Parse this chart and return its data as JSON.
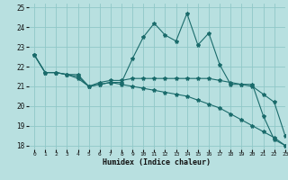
{
  "xlabel": "Humidex (Indice chaleur)",
  "background_color": "#b8e0e0",
  "grid_color": "#90c8c8",
  "line_color": "#1a6b6b",
  "xlim": [
    -0.5,
    23
  ],
  "ylim": [
    17.8,
    25.2
  ],
  "yticks": [
    18,
    19,
    20,
    21,
    22,
    23,
    24,
    25
  ],
  "xticks": [
    0,
    1,
    2,
    3,
    4,
    5,
    6,
    7,
    8,
    9,
    10,
    11,
    12,
    13,
    14,
    15,
    16,
    17,
    18,
    19,
    20,
    21,
    22,
    23
  ],
  "series": [
    [
      22.6,
      21.7,
      21.7,
      21.6,
      21.6,
      21.0,
      21.1,
      21.2,
      21.2,
      22.4,
      23.5,
      24.2,
      23.6,
      23.3,
      24.7,
      23.1,
      23.7,
      22.1,
      21.1,
      21.1,
      21.1,
      19.5,
      18.3,
      18.0
    ],
    [
      22.6,
      21.7,
      21.7,
      21.6,
      21.5,
      21.0,
      21.2,
      21.3,
      21.3,
      21.4,
      21.4,
      21.4,
      21.4,
      21.4,
      21.4,
      21.4,
      21.4,
      21.3,
      21.2,
      21.1,
      21.0,
      20.6,
      20.2,
      18.5
    ],
    [
      22.6,
      21.7,
      21.7,
      21.6,
      21.4,
      21.0,
      21.1,
      21.2,
      21.1,
      21.0,
      20.9,
      20.8,
      20.7,
      20.6,
      20.5,
      20.3,
      20.1,
      19.9,
      19.6,
      19.3,
      19.0,
      18.7,
      18.4,
      18.0
    ]
  ]
}
